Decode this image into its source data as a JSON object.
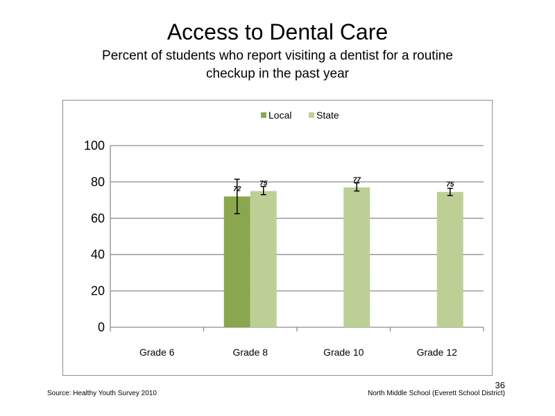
{
  "slide": {
    "title": "Access to Dental Care",
    "subtitle_line1": "Percent of students who report visiting a dentist for a routine",
    "subtitle_line2": "checkup in the past year",
    "source": "Source: Healthy Youth Survey 2010",
    "school": "North Middle School (Everett School District)",
    "page_number": "36"
  },
  "chart_data": {
    "type": "bar",
    "categories": [
      "Grade 6",
      "Grade 8",
      "Grade 10",
      "Grade 12"
    ],
    "series": [
      {
        "name": "Local",
        "color": "#8aa64e",
        "values": [
          null,
          72,
          null,
          null
        ],
        "labels": [
          null,
          "72",
          null,
          null
        ],
        "error_low": [
          null,
          62.5,
          null,
          null
        ],
        "error_high": [
          null,
          81.5,
          null,
          null
        ]
      },
      {
        "name": "State",
        "color": "#bcd095",
        "values": [
          null,
          75,
          77,
          74.5
        ],
        "labels": [
          null,
          "75",
          "77",
          "75"
        ],
        "error_low": [
          null,
          73,
          75,
          72.5
        ],
        "error_high": [
          null,
          77.5,
          79.5,
          76.5
        ]
      }
    ],
    "y_ticks": [
      "0",
      "20",
      "40",
      "60",
      "80",
      "100"
    ],
    "ylim": [
      0,
      100
    ],
    "grid": true,
    "legend_position": "top-center"
  }
}
